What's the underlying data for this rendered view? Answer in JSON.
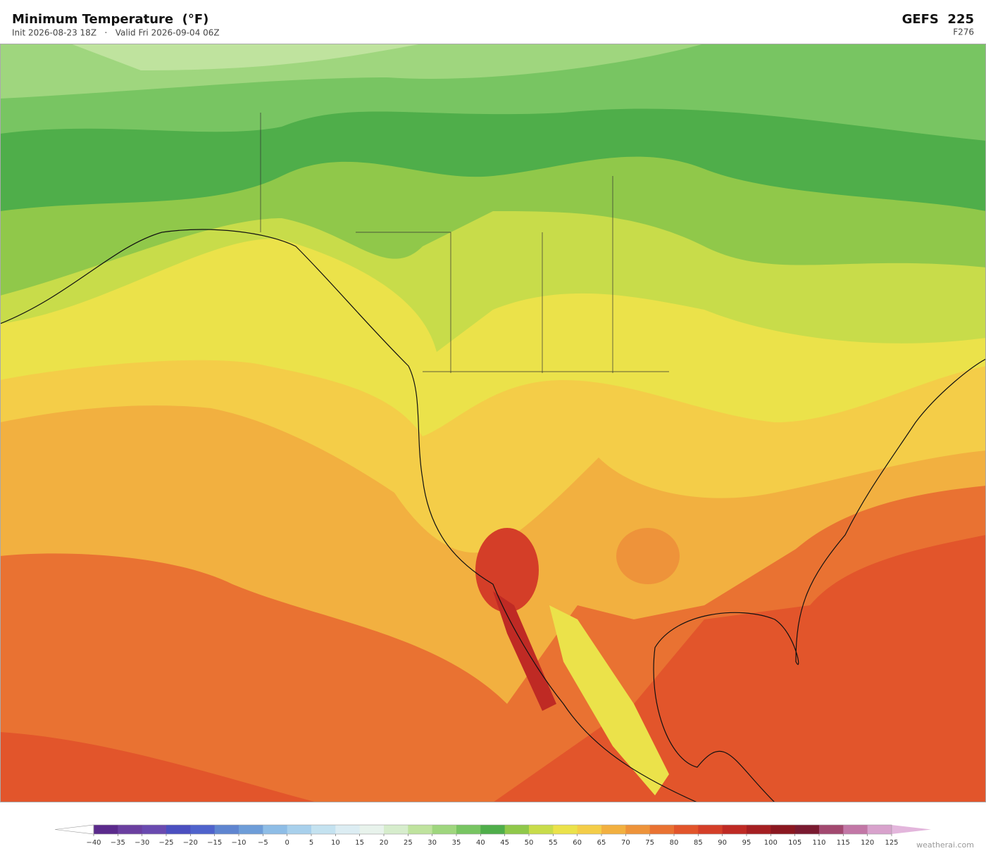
{
  "header": {
    "title": "Minimum Temperature  (°F)",
    "subtitle": "Init 2026-08-23 18Z   ·   Valid Fri 2026-09-04 06Z",
    "model": "GEFS  225",
    "forecast_hour": "F276"
  },
  "colorbar": {
    "ticks": [
      {
        "value": -40,
        "label": "−40"
      },
      {
        "value": -35,
        "label": "−35"
      },
      {
        "value": -30,
        "label": "−30"
      },
      {
        "value": -25,
        "label": "−25"
      },
      {
        "value": -20,
        "label": "−20"
      },
      {
        "value": -15,
        "label": "−15"
      },
      {
        "value": -10,
        "label": "−10"
      },
      {
        "value": -5,
        "label": "−5"
      },
      0,
      5,
      10,
      15,
      20,
      25,
      30,
      35,
      40,
      45,
      50,
      55,
      60,
      65,
      70,
      75,
      80,
      85,
      90,
      95,
      100,
      105,
      110,
      115,
      120,
      125
    ],
    "colors": [
      "#5b2a8c",
      "#6b3fa0",
      "#6a4ab0",
      "#4b4fc0",
      "#4f63cc",
      "#5f85d0",
      "#6e9dd8",
      "#8ebde6",
      "#a8d0ec",
      "#c4e2f0",
      "#dcedf3",
      "#e8f3ec",
      "#d6edcc",
      "#bfe39e",
      "#9fd67e",
      "#78c562",
      "#4fae4a",
      "#90c84a",
      "#c8dc4a",
      "#ebe24a",
      "#f4cd48",
      "#f2b040",
      "#ee933a",
      "#e97232",
      "#e2552b",
      "#d43e28",
      "#bf2a24",
      "#a51f22",
      "#8b1720",
      "#7a1a30",
      "#a2486f",
      "#c277a6",
      "#d8a2cc"
    ],
    "extend_colors": [
      "#ffffff",
      "#e3b6dc"
    ]
  },
  "watermark": "weatherai.com"
}
